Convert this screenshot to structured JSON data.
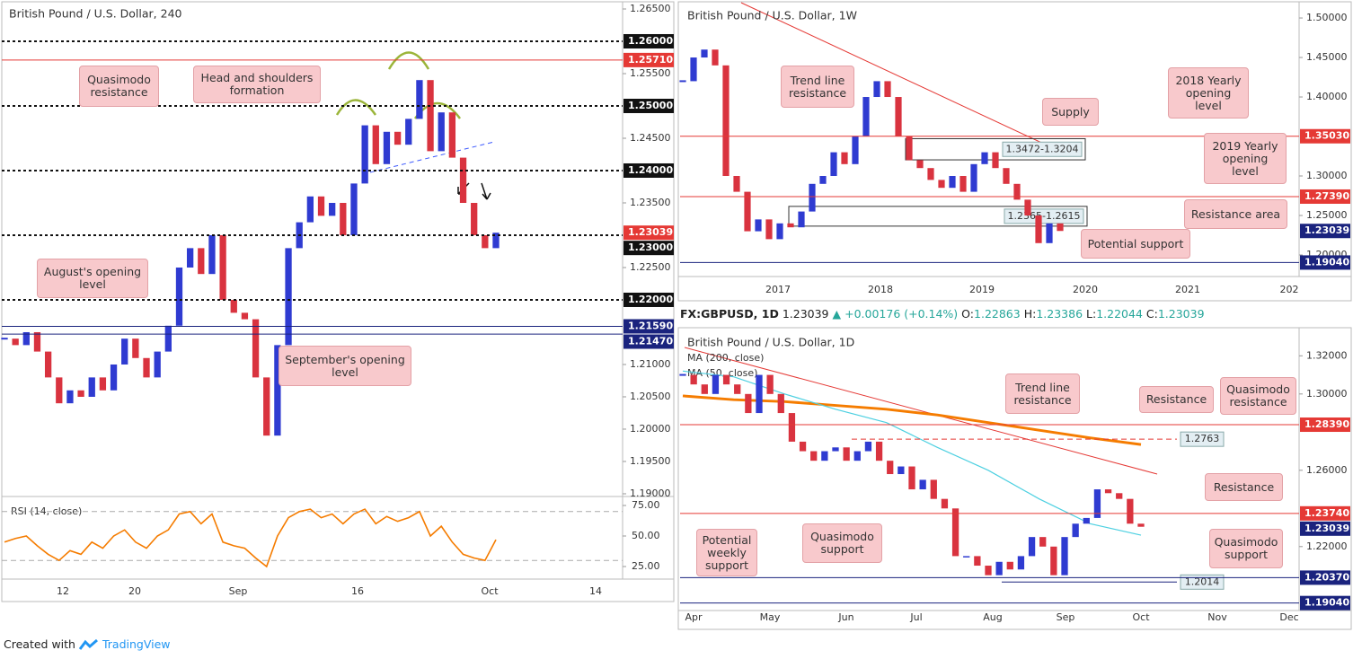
{
  "chart_data": [
    {
      "type": "candlestick",
      "title": "British Pound / U.S. Dollar, 240",
      "color_up": "#2f3bd1",
      "color_down": "#d9333f",
      "values": [
        1.214,
        1.213,
        1.215,
        1.212,
        1.208,
        1.204,
        1.206,
        1.205,
        1.208,
        1.206,
        1.21,
        1.214,
        1.211,
        1.208,
        1.212,
        1.216,
        1.225,
        1.228,
        1.224,
        1.23,
        1.22,
        1.218,
        1.217,
        1.208,
        1.199,
        1.213,
        1.228,
        1.232,
        1.236,
        1.233,
        1.235,
        1.23,
        1.238,
        1.247,
        1.241,
        1.246,
        1.244,
        1.248,
        1.254,
        1.243,
        1.249,
        1.242,
        1.235,
        1.23,
        1.228,
        1.23039
      ],
      "ylim": [
        1.18958,
        1.26611
      ],
      "yticks": [
        {
          "value": 1.265,
          "label": "1.26500"
        },
        {
          "value": 1.255,
          "label": "1.25500"
        },
        {
          "value": 1.245,
          "label": "1.24500"
        },
        {
          "value": 1.235,
          "label": "1.23500"
        },
        {
          "value": 1.225,
          "label": "1.22500"
        },
        {
          "value": 1.21,
          "label": "1.21000"
        },
        {
          "value": 1.205,
          "label": "1.20500"
        },
        {
          "value": 1.2,
          "label": "1.20000"
        },
        {
          "value": 1.195,
          "label": "1.19500"
        },
        {
          "value": 1.19,
          "label": "1.19000"
        }
      ],
      "levels": [
        {
          "value": 1.26,
          "label": "1.26000",
          "color": "#111111",
          "style": "dotted"
        },
        {
          "value": 1.2571,
          "label": "1.25710",
          "color": "#e53935",
          "style": "solid"
        },
        {
          "value": 1.25,
          "label": "1.25000",
          "color": "#111111",
          "style": "dotted"
        },
        {
          "value": 1.24,
          "label": "1.24000",
          "color": "#111111",
          "style": "dotted"
        },
        {
          "value": 1.23039,
          "label": "1.23039",
          "color": "#e53935",
          "style": "none"
        },
        {
          "value": 1.23,
          "label": "1.23000",
          "color": "#111111",
          "style": "dotted"
        },
        {
          "value": 1.22,
          "label": "1.22000",
          "color": "#111111",
          "style": "dotted"
        },
        {
          "value": 1.2159,
          "label": "1.21590",
          "color": "#1a237e",
          "style": "solid"
        },
        {
          "value": 1.2147,
          "label": "1.21470",
          "color": "#1a237e",
          "style": "solid"
        }
      ],
      "annotations": [
        "Quasimodo resistance",
        "Head and shoulders formation",
        "August's opening level",
        "September's opening level"
      ],
      "xtick_labels": [
        "12",
        "20",
        "Sep",
        "16",
        "Oct",
        "14"
      ],
      "indicator": {
        "name": "RSI (14, close)",
        "type": "line",
        "color": "#f57c00",
        "values": [
          45,
          48,
          50,
          42,
          35,
          30,
          38,
          35,
          45,
          40,
          50,
          55,
          45,
          40,
          50,
          55,
          68,
          70,
          60,
          68,
          45,
          42,
          40,
          32,
          25,
          50,
          65,
          70,
          72,
          65,
          68,
          60,
          68,
          72,
          60,
          66,
          62,
          65,
          70,
          50,
          58,
          45,
          35,
          32,
          30,
          47
        ],
        "ylim": [
          14.71,
          80.88
        ],
        "yticks": [
          {
            "value": 75,
            "label": "75.00"
          },
          {
            "value": 50,
            "label": "50.00"
          },
          {
            "value": 25,
            "label": "25.00"
          }
        ],
        "bands": [
          70,
          30
        ]
      }
    },
    {
      "type": "candlestick",
      "title": "British Pound / U.S. Dollar, 1W",
      "color_up": "#2f3bd1",
      "color_down": "#d9333f",
      "values": [
        1.42,
        1.45,
        1.46,
        1.44,
        1.3,
        1.28,
        1.23,
        1.245,
        1.22,
        1.24,
        1.235,
        1.255,
        1.29,
        1.3,
        1.33,
        1.315,
        1.35,
        1.4,
        1.42,
        1.4,
        1.35,
        1.32,
        1.31,
        1.295,
        1.285,
        1.3,
        1.28,
        1.315,
        1.33,
        1.31,
        1.29,
        1.27,
        1.25,
        1.215,
        1.24,
        1.23039
      ],
      "ylim": [
        1.1727,
        1.5205
      ],
      "yticks": [
        {
          "value": 1.5,
          "label": "1.50000"
        },
        {
          "value": 1.45,
          "label": "1.45000"
        },
        {
          "value": 1.4,
          "label": "1.40000"
        },
        {
          "value": 1.3,
          "label": "1.30000"
        },
        {
          "value": 1.25,
          "label": "1.25000"
        },
        {
          "value": 1.2,
          "label": "1.20000"
        }
      ],
      "levels": [
        {
          "value": 1.3503,
          "label": "1.35030",
          "color": "#e53935",
          "style": "solid"
        },
        {
          "value": 1.2739,
          "label": "1.27390",
          "color": "#e53935",
          "style": "solid"
        },
        {
          "value": 1.23039,
          "label": "1.23039",
          "color": "#1a237e",
          "style": "none"
        },
        {
          "value": 1.1904,
          "label": "1.19040",
          "color": "#1a237e",
          "style": "solid"
        }
      ],
      "zones": [
        {
          "label": "1.3472-1.3204",
          "high": 1.3472,
          "low": 1.3204
        },
        {
          "label": "1.2365-1.2615",
          "low": 1.2365,
          "high": 1.2615
        }
      ],
      "annotations": [
        "Trend line resistance",
        "Supply",
        "2018 Yearly opening level",
        "2019 Yearly opening level",
        "Resistance area",
        "Potential support"
      ],
      "xtick_labels": [
        "2017",
        "2018",
        "2019",
        "2020",
        "2021",
        "202"
      ]
    },
    {
      "type": "candlestick",
      "title": "British Pound / U.S. Dollar, 1D",
      "color_up": "#2f3bd1",
      "color_down": "#d9333f",
      "values": [
        1.31,
        1.305,
        1.3,
        1.31,
        1.305,
        1.3,
        1.29,
        1.31,
        1.3,
        1.29,
        1.275,
        1.27,
        1.265,
        1.27,
        1.272,
        1.265,
        1.27,
        1.275,
        1.265,
        1.258,
        1.262,
        1.25,
        1.255,
        1.245,
        1.24,
        1.215,
        1.215,
        1.21,
        1.205,
        1.212,
        1.208,
        1.215,
        1.225,
        1.22,
        1.205,
        1.225,
        1.232,
        1.235,
        1.25,
        1.248,
        1.245,
        1.232,
        1.23039
      ],
      "ylim": [
        1.18648,
        1.33333
      ],
      "yticks": [
        {
          "value": 1.32,
          "label": "1.32000"
        },
        {
          "value": 1.3,
          "label": "1.30000"
        },
        {
          "value": 1.26,
          "label": "1.26000"
        },
        {
          "value": 1.22,
          "label": "1.22000"
        }
      ],
      "series": [
        {
          "name": "MA (200, close)",
          "color": "#f57c00",
          "values": [
            1.299,
            1.297,
            1.296,
            1.294,
            1.292,
            1.289,
            1.285,
            1.281,
            1.277,
            1.2735
          ]
        },
        {
          "name": "MA (50, close)",
          "color": "#4dd0e1",
          "values": [
            1.312,
            1.309,
            1.3,
            1.292,
            1.285,
            1.272,
            1.26,
            1.245,
            1.232,
            1.226
          ]
        }
      ],
      "levels": [
        {
          "value": 1.2839,
          "label": "1.28390",
          "color": "#e53935",
          "style": "solid"
        },
        {
          "value": 1.2374,
          "label": "1.23740",
          "color": "#e53935",
          "style": "solid"
        },
        {
          "value": 1.23039,
          "label": "1.23039",
          "color": "#1a237e",
          "style": "none"
        },
        {
          "value": 1.2037,
          "label": "1.20370",
          "color": "#1a237e",
          "style": "solid"
        },
        {
          "value": 1.1904,
          "label": "1.19040",
          "color": "#1a237e",
          "style": "solid"
        }
      ],
      "marked_levels": [
        {
          "value": 1.2763,
          "label": "1.2763"
        },
        {
          "value": 1.2014,
          "label": "1.2014"
        }
      ],
      "annotations": [
        "Trend line resistance",
        "Resistance",
        "Quasimodo resistance",
        "Resistance",
        "Potential weekly support",
        "Quasimodo support",
        "Quasimodo support"
      ],
      "xtick_labels": [
        "Apr",
        "May",
        "Jun",
        "Jul",
        "Aug",
        "Sep",
        "Oct",
        "Nov",
        "Dec"
      ]
    }
  ],
  "ticker_bar": {
    "symbol": "FX:GBPUSD, 1D",
    "last": "1.23039",
    "arrow": "▲",
    "change": "+0.00176 (+0.14%)",
    "open_label": "O:",
    "open": "1.22863",
    "high_label": "H:",
    "high": "1.23386",
    "low_label": "L:",
    "low": "1.22044",
    "close_label": "C:",
    "close": "1.23039"
  },
  "footer": {
    "prefix": "Created with",
    "brand": "TradingView"
  }
}
